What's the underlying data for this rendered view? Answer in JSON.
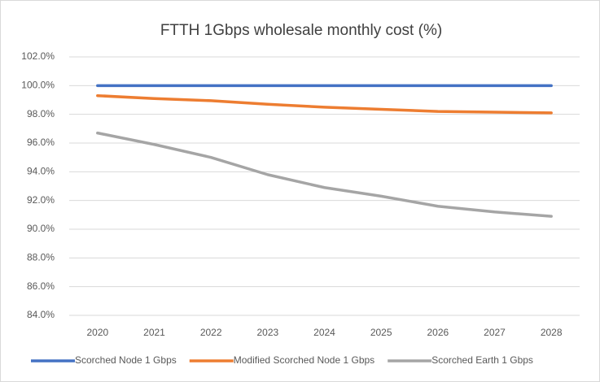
{
  "chart_data": {
    "type": "line",
    "title": "FTTH 1Gbps wholesale monthly cost (%)",
    "categories": [
      "2020",
      "2021",
      "2022",
      "2023",
      "2024",
      "2025",
      "2026",
      "2027",
      "2028"
    ],
    "series": [
      {
        "name": "Scorched Node 1 Gbps",
        "color": "#4472c4",
        "values": [
          100,
          100,
          100,
          100,
          100,
          100,
          100,
          100,
          100
        ]
      },
      {
        "name": "Modified Scorched Node 1 Gbps",
        "color": "#ed7d31",
        "values": [
          99.3,
          99.1,
          98.95,
          98.7,
          98.5,
          98.35,
          98.2,
          98.15,
          98.1
        ]
      },
      {
        "name": "Scorched Earth 1 Gbps",
        "color": "#a5a5a5",
        "values": [
          96.7,
          95.9,
          95.0,
          93.8,
          92.9,
          92.3,
          91.6,
          91.2,
          90.9
        ]
      }
    ],
    "ylim": [
      84,
      102
    ],
    "yticks": [
      {
        "value": 84,
        "label": "84.0%"
      },
      {
        "value": 86,
        "label": "86.0%"
      },
      {
        "value": 88,
        "label": "88.0%"
      },
      {
        "value": 90,
        "label": "90.0%"
      },
      {
        "value": 92,
        "label": "92.0%"
      },
      {
        "value": 94,
        "label": "94.0%"
      },
      {
        "value": 96,
        "label": "96.0%"
      },
      {
        "value": 98,
        "label": "98.0%"
      },
      {
        "value": 100,
        "label": "100.0%"
      },
      {
        "value": 102,
        "label": "102.0%"
      }
    ],
    "grid": true,
    "legend": "bottom"
  }
}
